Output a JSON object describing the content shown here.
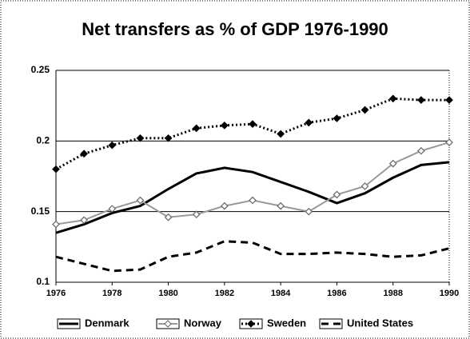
{
  "chart_data": {
    "type": "line",
    "title": "Net transfers as % of GDP 1976-1990",
    "x": [
      1976,
      1977,
      1978,
      1979,
      1980,
      1981,
      1982,
      1983,
      1984,
      1985,
      1986,
      1987,
      1988,
      1989,
      1990
    ],
    "series": [
      {
        "name": "Denmark",
        "color": "#000000",
        "values": [
          0.135,
          0.141,
          0.149,
          0.154,
          0.166,
          0.177,
          0.181,
          0.178,
          0.171,
          0.164,
          0.156,
          0.163,
          0.174,
          0.183,
          0.185
        ]
      },
      {
        "name": "Norway",
        "color": "#999999",
        "values": [
          0.141,
          0.144,
          0.152,
          0.158,
          0.146,
          0.148,
          0.154,
          0.158,
          0.154,
          0.15,
          0.162,
          0.168,
          0.184,
          0.193,
          0.199
        ]
      },
      {
        "name": "Sweden",
        "color": "#000000",
        "values": [
          0.18,
          0.191,
          0.197,
          0.202,
          0.202,
          0.209,
          0.211,
          0.212,
          0.205,
          0.213,
          0.216,
          0.222,
          0.23,
          0.229,
          0.229
        ]
      },
      {
        "name": "United States",
        "color": "#000000",
        "values": [
          0.118,
          0.113,
          0.108,
          0.109,
          0.118,
          0.121,
          0.129,
          0.128,
          0.12,
          0.12,
          0.121,
          0.12,
          0.118,
          0.119,
          0.124
        ]
      }
    ],
    "xlim": [
      1976,
      1990
    ],
    "xticks": [
      1976,
      1978,
      1980,
      1982,
      1984,
      1986,
      1988,
      1990
    ],
    "ylim": [
      0.1,
      0.25
    ],
    "yticks": [
      0.25,
      0.2,
      0.15,
      0.1
    ],
    "grid": true
  }
}
